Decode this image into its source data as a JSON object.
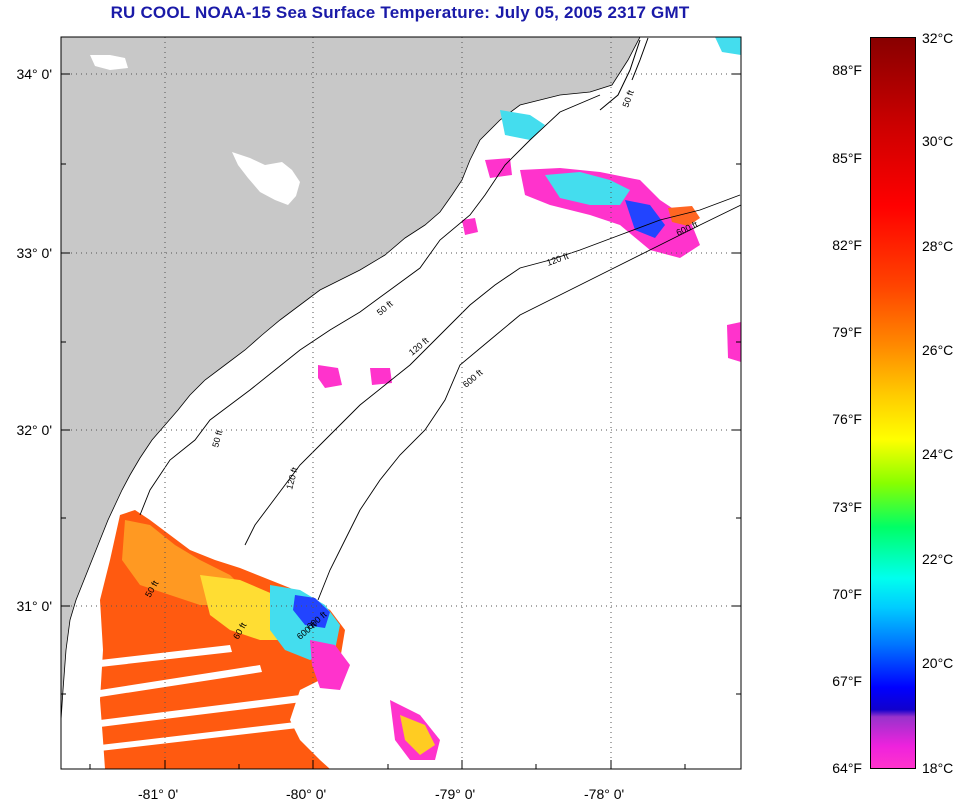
{
  "title": "RU COOL  NOAA-15  Sea Surface Temperature:  July 05, 2005 2317 GMT",
  "latitude_labels": [
    "34° 0'",
    "33° 0'",
    "32° 0'",
    "31° 0'"
  ],
  "longitude_labels": [
    "-81° 0'",
    "-80° 0'",
    "-79° 0'",
    "-78° 0'"
  ],
  "isobath_labels": [
    "50 ft",
    "120 ft",
    "600 ft",
    "50 ft",
    "120 ft",
    "600 ft",
    "50 ft",
    "120 ft",
    "600 ft",
    "50 ft",
    "60 ft",
    "600 ft"
  ],
  "colorbar": {
    "fahrenheit": [
      "88°F",
      "85°F",
      "82°F",
      "79°F",
      "76°F",
      "73°F",
      "70°F",
      "67°F",
      "64°F"
    ],
    "celsius": [
      "32°C",
      "30°C",
      "28°C",
      "26°C",
      "24°C",
      "22°C",
      "20°C",
      "18°C"
    ]
  },
  "colors": {
    "land": "#c8c8c8",
    "title": "#1a1aa8",
    "warm": "#ff5500",
    "cool": "#ff33cc"
  }
}
